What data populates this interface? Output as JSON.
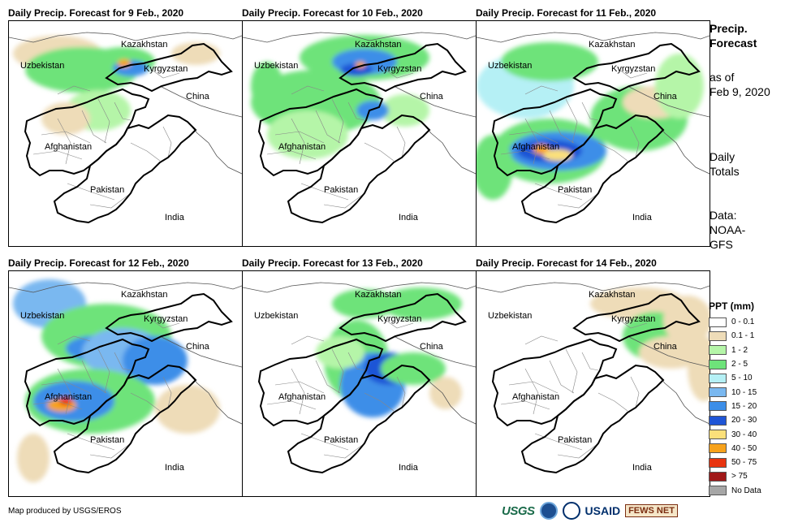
{
  "panels": [
    {
      "title": "Daily Precip. Forecast for 9 Feb., 2020",
      "day": 9
    },
    {
      "title": "Daily Precip. Forecast for 10 Feb., 2020",
      "day": 10
    },
    {
      "title": "Daily Precip. Forecast for 11 Feb., 2020",
      "day": 11
    },
    {
      "title": "Daily Precip. Forecast for 12 Feb., 2020",
      "day": 12
    },
    {
      "title": "Daily Precip. Forecast for 13 Feb., 2020",
      "day": 13
    },
    {
      "title": "Daily Precip. Forecast for 14 Feb., 2020",
      "day": 14
    }
  ],
  "map_labels": {
    "kazakhstan": "Kazakhstan",
    "uzbekistan": "Uzbekistan",
    "kyrgyzstan": "Kyrgyzstan",
    "china": "China",
    "afghanistan": "Afghanistan",
    "pakistan": "Pakistan",
    "india": "India"
  },
  "side_panel": {
    "heading_line1": "Precip.",
    "heading_line2": "Forecast",
    "asof_line1": "as of",
    "asof_line2": "Feb 9, 2020",
    "daily_line1": "Daily",
    "daily_line2": "Totals",
    "data_line1": "Data:",
    "data_line2": "NOAA-",
    "data_line3": "GFS"
  },
  "legend": {
    "title": "PPT (mm)",
    "items": [
      {
        "label": "0 - 0.1",
        "color": "#ffffff"
      },
      {
        "label": "0.1 - 1",
        "color": "#eedcb8"
      },
      {
        "label": "1 - 2",
        "color": "#b5f5a8"
      },
      {
        "label": "2 - 5",
        "color": "#6ee37a"
      },
      {
        "label": "5 - 10",
        "color": "#b5f0f5"
      },
      {
        "label": "10 - 15",
        "color": "#7ab8f0"
      },
      {
        "label": "15 - 20",
        "color": "#3c8ee8"
      },
      {
        "label": "20 - 30",
        "color": "#1f55d6"
      },
      {
        "label": "30 - 40",
        "color": "#fbe07a"
      },
      {
        "label": "40 - 50",
        "color": "#f7a21b"
      },
      {
        "label": "50 - 75",
        "color": "#e8340f"
      },
      {
        "label": "> 75",
        "color": "#a01818"
      },
      {
        "label": "No Data",
        "color": "#a6a6a6"
      }
    ]
  },
  "footer": {
    "credit": "Map produced by USGS/EROS",
    "logo_usgs": "USGS",
    "logo_usaid": "USAID",
    "logo_fews": "FEWS NET"
  }
}
